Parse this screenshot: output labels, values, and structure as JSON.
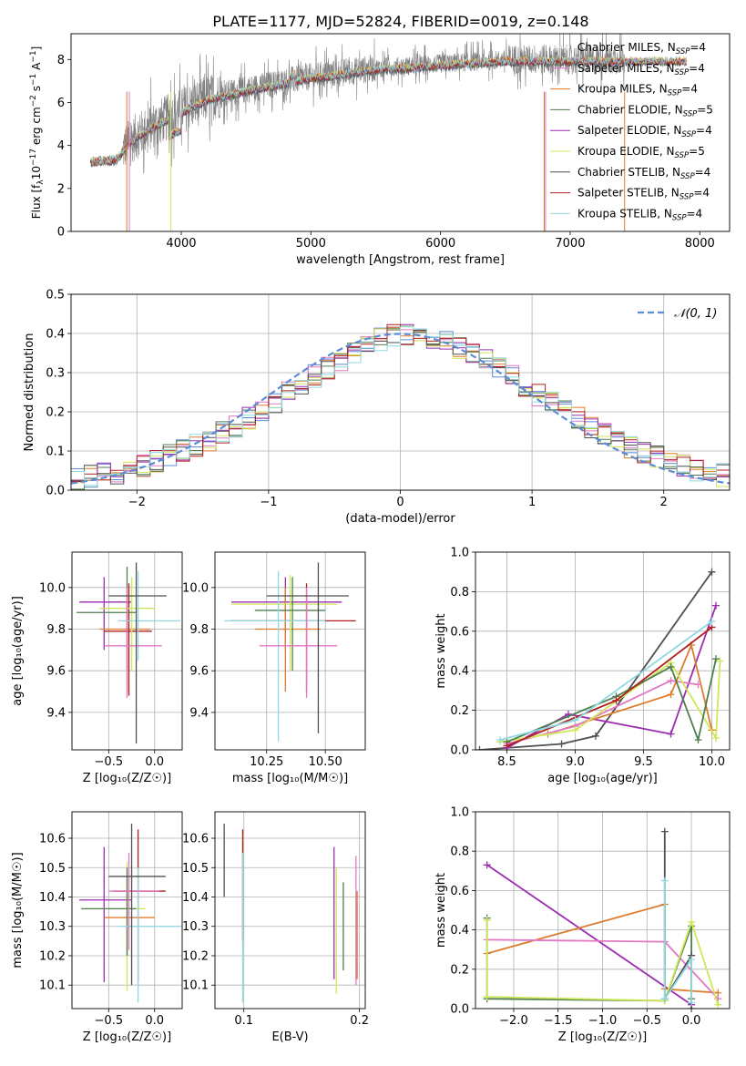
{
  "figure": {
    "title": "PLATE=1177, MJD=52824, FIBERID=0019, z=0.148"
  },
  "legend_models": [
    {
      "label": "Chabrier MILES, N",
      "sub": "SSP",
      "tail": "=4",
      "color": "#ffffff"
    },
    {
      "label": "Salpeter MILES, N",
      "sub": "SSP",
      "tail": "=4",
      "color": "#e377c2"
    },
    {
      "label": "Kroupa MILES, N",
      "sub": "SSP",
      "tail": "=4",
      "color": "#dd7c2e"
    },
    {
      "label": "Chabrier ELODIE, N",
      "sub": "SSP",
      "tail": "=5",
      "color": "#4f7f4f"
    },
    {
      "label": "Salpeter ELODIE, N",
      "sub": "SSP",
      "tail": "=4",
      "color": "#9d2db0"
    },
    {
      "label": "Kroupa ELODIE, N",
      "sub": "SSP",
      "tail": "=5",
      "color": "#cfe85a"
    },
    {
      "label": "Chabrier STELIB, N",
      "sub": "SSP",
      "tail": "=4",
      "color": "#505050"
    },
    {
      "label": "Salpeter STELIB, N",
      "sub": "SSP",
      "tail": "=4",
      "color": "#b01e1e"
    },
    {
      "label": "Kroupa STELIB, N",
      "sub": "SSP",
      "tail": "=4",
      "color": "#8fd8e0"
    }
  ],
  "colors": {
    "data": "#808080",
    "gaussian": "#5b8bd5",
    "grid": "#b0b0b0"
  },
  "chart_data": [
    {
      "id": "spectrum",
      "type": "line",
      "xlabel": "wavelength [Angstrom, rest frame]",
      "ylabel_parts": [
        "Flux [f",
        "λ",
        "10",
        "−17",
        " erg cm",
        "−2",
        " s",
        "−1",
        " A",
        "−1",
        "]"
      ],
      "xlim": [
        3150,
        8230
      ],
      "ylim": [
        0,
        9.2
      ],
      "xticks": [
        4000,
        5000,
        6000,
        7000,
        8000
      ],
      "yticks": [
        0,
        2,
        4,
        6,
        8
      ],
      "continuum_x": [
        3300,
        3500,
        3600,
        3800,
        4000,
        4200,
        4500,
        5000,
        5500,
        6000,
        6500,
        7000,
        7500,
        7900
      ],
      "continuum_y": [
        3.3,
        3.4,
        4.2,
        5.0,
        5.6,
        6.2,
        6.6,
        7.2,
        7.6,
        7.8,
        8.0,
        8.0,
        8.0,
        8.0
      ],
      "data_range": [
        3550,
        7420
      ]
    },
    {
      "id": "residuals",
      "type": "bar",
      "xlabel": "(data-model)/error",
      "ylabel": "Normed distribution",
      "xlim": [
        -2.5,
        2.5
      ],
      "ylim": [
        0,
        0.5
      ],
      "xticks": [
        -2,
        -1,
        0,
        1,
        2
      ],
      "yticks": [
        0.0,
        0.1,
        0.2,
        0.3,
        0.4,
        0.5
      ],
      "bin_width": 0.1,
      "legend": "𝒩(0, 1)",
      "reference_values": [
        0.028,
        0.035,
        0.04,
        0.043,
        0.052,
        0.062,
        0.075,
        0.088,
        0.1,
        0.115,
        0.13,
        0.148,
        0.165,
        0.185,
        0.205,
        0.225,
        0.248,
        0.27,
        0.292,
        0.313,
        0.335,
        0.355,
        0.372,
        0.385,
        0.395,
        0.4,
        0.398,
        0.39,
        0.38,
        0.365,
        0.35,
        0.33,
        0.31,
        0.29,
        0.268,
        0.245,
        0.224,
        0.203,
        0.183,
        0.163,
        0.145,
        0.128,
        0.112,
        0.097,
        0.085,
        0.073,
        0.063,
        0.053,
        0.045,
        0.038
      ]
    },
    {
      "id": "age-vs-Z",
      "type": "scatter",
      "xlabel": "Z [log₁₀(Z/Z☉)]",
      "ylabel": "age  [log₁₀(age/yr)]",
      "xlim": [
        -0.9,
        0.3
      ],
      "ylim": [
        9.22,
        10.17
      ],
      "xticks": [
        -0.5,
        0.0
      ],
      "yticks": [
        9.4,
        9.6,
        9.8,
        10.0
      ],
      "errorbars": [
        {
          "x": -0.55,
          "y": 9.93,
          "xlo": -0.82,
          "xhi": -0.25,
          "ylo": 9.7,
          "yhi": 10.05,
          "color": "#9d2db0"
        },
        {
          "x": -0.3,
          "y": 9.8,
          "xlo": -0.6,
          "xhi": -0.05,
          "ylo": 9.5,
          "yhi": 10.0,
          "color": "#dd7c2e"
        },
        {
          "x": -0.28,
          "y": 9.79,
          "xlo": -0.55,
          "xhi": -0.03,
          "ylo": 9.48,
          "yhi": 10.02,
          "color": "#b01e1e"
        },
        {
          "x": -0.25,
          "y": 9.9,
          "xlo": -0.6,
          "xhi": 0.0,
          "ylo": 9.6,
          "yhi": 10.05,
          "color": "#cfe85a"
        },
        {
          "x": -0.3,
          "y": 9.88,
          "xlo": -0.85,
          "xhi": -0.2,
          "ylo": 9.6,
          "yhi": 10.1,
          "color": "#4f7f4f"
        },
        {
          "x": -0.18,
          "y": 9.84,
          "xlo": -0.4,
          "xhi": 0.28,
          "ylo": 9.65,
          "yhi": 10.08,
          "color": "#8fd8e0"
        },
        {
          "x": -0.3,
          "y": 9.72,
          "xlo": -0.55,
          "xhi": 0.08,
          "ylo": 9.47,
          "yhi": 10.0,
          "color": "#e377c2"
        },
        {
          "x": -0.2,
          "y": 9.96,
          "xlo": -0.5,
          "xhi": 0.13,
          "ylo": 9.25,
          "yhi": 10.12,
          "color": "#505050"
        }
      ]
    },
    {
      "id": "age-vs-mass",
      "type": "scatter",
      "xlabel": "mass [log₁₀(M/M☉)]",
      "ylabel": "",
      "xlim": [
        10.03,
        10.67
      ],
      "ylim": [
        9.22,
        10.17
      ],
      "xticks": [
        10.25,
        10.5
      ],
      "yticks": [
        9.4,
        9.6,
        9.8,
        10.0
      ],
      "errorbars": [
        {
          "x": 10.33,
          "y": 9.93,
          "xlo": 10.1,
          "xhi": 10.57,
          "ylo": 9.7,
          "yhi": 10.05,
          "color": "#9d2db0"
        },
        {
          "x": 10.33,
          "y": 9.8,
          "xlo": 10.2,
          "xhi": 10.48,
          "ylo": 9.5,
          "yhi": 10.0,
          "color": "#dd7c2e"
        },
        {
          "x": 10.42,
          "y": 9.84,
          "xlo": 10.1,
          "xhi": 10.63,
          "ylo": 9.5,
          "yhi": 10.02,
          "color": "#b01e1e"
        },
        {
          "x": 10.35,
          "y": 9.92,
          "xlo": 10.1,
          "xhi": 10.55,
          "ylo": 9.6,
          "yhi": 10.06,
          "color": "#cfe85a"
        },
        {
          "x": 10.36,
          "y": 9.89,
          "xlo": 10.2,
          "xhi": 10.5,
          "ylo": 9.6,
          "yhi": 10.05,
          "color": "#4f7f4f"
        },
        {
          "x": 10.3,
          "y": 9.84,
          "xlo": 10.07,
          "xhi": 10.5,
          "ylo": 9.26,
          "yhi": 10.08,
          "color": "#8fd8e0"
        },
        {
          "x": 10.42,
          "y": 9.72,
          "xlo": 10.22,
          "xhi": 10.55,
          "ylo": 9.47,
          "yhi": 10.0,
          "color": "#e377c2"
        },
        {
          "x": 10.47,
          "y": 9.96,
          "xlo": 10.25,
          "xhi": 10.6,
          "ylo": 9.3,
          "yhi": 10.12,
          "color": "#505050"
        }
      ]
    },
    {
      "id": "weight-vs-age",
      "type": "line",
      "xlabel": "age  [log₁₀(age/yr)]",
      "ylabel": "mass weight",
      "xlim": [
        8.27,
        10.13
      ],
      "ylim": [
        0,
        1
      ],
      "xticks": [
        8.5,
        9.0,
        9.5,
        10.0
      ],
      "yticks": [
        0.0,
        0.2,
        0.4,
        0.6,
        0.8,
        1.0
      ],
      "series": [
        {
          "color": "#505050",
          "x": [
            8.3,
            8.9,
            9.15,
            10.0
          ],
          "y": [
            0.0,
            0.03,
            0.07,
            0.9
          ]
        },
        {
          "color": "#9d2db0",
          "x": [
            8.5,
            8.95,
            9.7,
            10.03
          ],
          "y": [
            0.01,
            0.18,
            0.08,
            0.73
          ]
        },
        {
          "color": "#dd7c2e",
          "x": [
            8.8,
            9.7,
            9.85,
            10.0
          ],
          "y": [
            0.08,
            0.28,
            0.53,
            0.1
          ]
        },
        {
          "color": "#e377c2",
          "x": [
            8.5,
            9.0,
            9.7,
            9.9
          ],
          "y": [
            0.03,
            0.12,
            0.35,
            0.33
          ]
        },
        {
          "color": "#cfe85a",
          "x": [
            8.45,
            9.0,
            9.7,
            10.03,
            10.06
          ],
          "y": [
            0.04,
            0.1,
            0.44,
            0.06,
            0.45
          ]
        },
        {
          "color": "#4f7f4f",
          "x": [
            8.5,
            9.3,
            9.7,
            9.9,
            10.03
          ],
          "y": [
            0.04,
            0.27,
            0.42,
            0.05,
            0.46
          ]
        },
        {
          "color": "#b01e1e",
          "x": [
            8.5,
            9.3,
            10.0
          ],
          "y": [
            0.02,
            0.25,
            0.62
          ]
        },
        {
          "color": "#8fd8e0",
          "x": [
            8.45,
            9.0,
            10.0
          ],
          "y": [
            0.05,
            0.15,
            0.65
          ]
        }
      ]
    },
    {
      "id": "mass-vs-Z",
      "type": "scatter",
      "xlabel": "Z [log₁₀(Z/Z☉)]",
      "ylabel": "mass [log₁₀(M/M☉)]",
      "xlim": [
        -0.9,
        0.3
      ],
      "ylim": [
        10.02,
        10.69
      ],
      "xticks": [
        -0.5,
        0.0
      ],
      "yticks": [
        10.1,
        10.2,
        10.3,
        10.4,
        10.5,
        10.6
      ],
      "errorbars": [
        {
          "x": -0.55,
          "y": 10.39,
          "xlo": -0.82,
          "xhi": -0.25,
          "ylo": 10.11,
          "yhi": 10.57,
          "color": "#9d2db0"
        },
        {
          "x": -0.3,
          "y": 10.33,
          "xlo": -0.55,
          "xhi": 0.0,
          "ylo": 10.2,
          "yhi": 10.46,
          "color": "#dd7c2e"
        },
        {
          "x": -0.18,
          "y": 10.42,
          "xlo": -0.45,
          "xhi": 0.12,
          "ylo": 10.11,
          "yhi": 10.63,
          "color": "#b01e1e"
        },
        {
          "x": -0.3,
          "y": 10.36,
          "xlo": -0.75,
          "xhi": -0.1,
          "ylo": 10.08,
          "yhi": 10.52,
          "color": "#cfe85a"
        },
        {
          "x": -0.3,
          "y": 10.36,
          "xlo": -0.8,
          "xhi": -0.2,
          "ylo": 10.2,
          "yhi": 10.5,
          "color": "#4f7f4f"
        },
        {
          "x": -0.18,
          "y": 10.3,
          "xlo": -0.4,
          "xhi": 0.28,
          "ylo": 10.04,
          "yhi": 10.5,
          "color": "#8fd8e0"
        },
        {
          "x": -0.28,
          "y": 10.42,
          "xlo": -0.5,
          "xhi": 0.05,
          "ylo": 10.22,
          "yhi": 10.55,
          "color": "#e377c2"
        },
        {
          "x": -0.25,
          "y": 10.47,
          "xlo": -0.5,
          "xhi": 0.12,
          "ylo": 10.1,
          "yhi": 10.65,
          "color": "#505050"
        }
      ]
    },
    {
      "id": "mass-vs-ebv",
      "type": "scatter",
      "xlabel": "E(B-V)",
      "ylabel": "",
      "xlim": [
        0.075,
        0.205
      ],
      "ylim": [
        10.02,
        10.69
      ],
      "xticks": [
        0.1,
        0.2
      ],
      "yticks": [
        10.1,
        10.2,
        10.3,
        10.4,
        10.5,
        10.6
      ],
      "errorbars": [
        {
          "x": 0.083,
          "y": 10.52,
          "xlo": 0.083,
          "xhi": 0.083,
          "ylo": 10.4,
          "yhi": 10.65,
          "color": "#505050"
        },
        {
          "x": 0.099,
          "y": 10.45,
          "xlo": 0.099,
          "xhi": 0.099,
          "ylo": 10.25,
          "yhi": 10.63,
          "color": "#b01e1e"
        },
        {
          "x": 0.099,
          "y": 10.3,
          "xlo": 0.099,
          "xhi": 0.099,
          "ylo": 10.04,
          "yhi": 10.55,
          "color": "#8fd8e0"
        },
        {
          "x": 0.178,
          "y": 10.35,
          "xlo": 0.178,
          "xhi": 0.178,
          "ylo": 10.12,
          "yhi": 10.57,
          "color": "#9d2db0"
        },
        {
          "x": 0.18,
          "y": 10.3,
          "xlo": 0.18,
          "xhi": 0.18,
          "ylo": 10.07,
          "yhi": 10.5,
          "color": "#cfe85a"
        },
        {
          "x": 0.186,
          "y": 10.3,
          "xlo": 0.186,
          "xhi": 0.186,
          "ylo": 10.15,
          "yhi": 10.45,
          "color": "#4f7f4f"
        },
        {
          "x": 0.197,
          "y": 10.3,
          "xlo": 0.197,
          "xhi": 0.197,
          "ylo": 10.1,
          "yhi": 10.54,
          "color": "#e377c2"
        },
        {
          "x": 0.198,
          "y": 10.3,
          "xlo": 0.198,
          "xhi": 0.198,
          "ylo": 10.12,
          "yhi": 10.42,
          "color": "#dd7c2e"
        }
      ]
    },
    {
      "id": "weight-vs-Z",
      "type": "line",
      "xlabel": "Z [log₁₀(Z/Z☉)]",
      "ylabel": "mass weight",
      "xlim": [
        -2.43,
        0.43
      ],
      "ylim": [
        0,
        1
      ],
      "xticks": [
        -2.0,
        -1.5,
        -1.0,
        -0.5,
        0.0
      ],
      "yticks": [
        0.0,
        0.2,
        0.4,
        0.6,
        0.8,
        1.0
      ],
      "series": [
        {
          "color": "#9d2db0",
          "x": [
            -2.3,
            0.0
          ],
          "y": [
            0.73,
            0.02
          ]
        },
        {
          "color": "#dd7c2e",
          "x": [
            -2.3,
            -0.3,
            -0.3,
            0.3
          ],
          "y": [
            0.28,
            0.53,
            0.1,
            0.08
          ]
        },
        {
          "color": "#e377c2",
          "x": [
            -2.3,
            -0.3,
            0.3
          ],
          "y": [
            0.35,
            0.34,
            0.05
          ]
        },
        {
          "color": "#4f7f4f",
          "x": [
            -2.3,
            -2.3,
            -0.3,
            0.0,
            0.0
          ],
          "y": [
            0.46,
            0.05,
            0.04,
            0.42,
            0.05
          ]
        },
        {
          "color": "#cfe85a",
          "x": [
            -2.3,
            -2.3,
            -0.3,
            0.0,
            0.3
          ],
          "y": [
            0.45,
            0.06,
            0.04,
            0.44,
            0.02
          ]
        },
        {
          "color": "#505050",
          "x": [
            -0.3,
            -0.3,
            0.0,
            0.0
          ],
          "y": [
            0.9,
            0.05,
            0.27,
            0.0
          ]
        },
        {
          "color": "#8fd8e0",
          "x": [
            -0.3,
            -0.3,
            0.0,
            0.0
          ],
          "y": [
            0.65,
            0.05,
            0.25,
            0.03
          ]
        }
      ]
    }
  ]
}
